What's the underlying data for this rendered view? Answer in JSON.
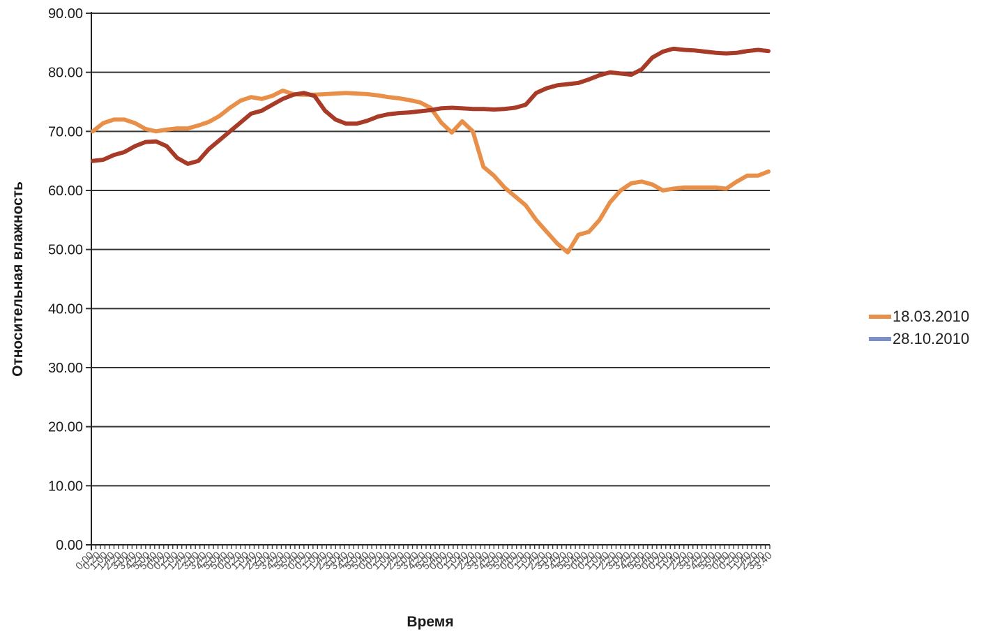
{
  "chart_data": {
    "type": "line",
    "xlabel": "Время",
    "ylabel": "Относительная влажность",
    "ylim": [
      0,
      90
    ],
    "y_ticks": [
      "0.00",
      "10.00",
      "20.00",
      "30.00",
      "40.00",
      "50.00",
      "60.00",
      "70.00",
      "80.00",
      "90.00"
    ],
    "grid": "horizontal",
    "legend_position": "right",
    "x_tick_labels_legible": false,
    "series": [
      {
        "name": "18.03.2010",
        "color": "#e8904a",
        "legend_color": "#e8904a",
        "values": [
          70.0,
          71.4,
          72.0,
          72.0,
          71.4,
          70.4,
          70.0,
          70.3,
          70.5,
          70.5,
          71.0,
          71.6,
          72.6,
          74.0,
          75.2,
          75.8,
          75.5,
          76.0,
          76.9,
          76.3,
          76.2,
          76.2,
          76.3,
          76.4,
          76.5,
          76.4,
          76.3,
          76.1,
          75.8,
          75.6,
          75.3,
          74.9,
          74.0,
          71.5,
          69.8,
          71.7,
          70.0,
          64.0,
          62.5,
          60.5,
          59.0,
          57.5,
          55.0,
          53.0,
          51.0,
          49.5,
          52.5,
          53.0,
          55.0,
          58.0,
          60.0,
          61.2,
          61.5,
          61.0,
          60.0,
          60.3,
          60.5,
          60.5,
          60.5,
          60.5,
          60.3,
          61.5,
          62.5,
          62.5,
          63.2
        ]
      },
      {
        "name": "28.10.2010",
        "color": "#a83a28",
        "legend_color": "#7b8fc8",
        "values": [
          65.0,
          65.2,
          66.0,
          66.5,
          67.5,
          68.2,
          68.3,
          67.5,
          65.5,
          64.5,
          65.0,
          67.0,
          68.5,
          70.0,
          71.5,
          73.0,
          73.5,
          74.5,
          75.5,
          76.2,
          76.5,
          76.0,
          73.5,
          72.0,
          71.3,
          71.3,
          71.8,
          72.5,
          72.9,
          73.1,
          73.2,
          73.4,
          73.6,
          73.9,
          74.0,
          73.9,
          73.8,
          73.8,
          73.7,
          73.8,
          74.0,
          74.5,
          76.5,
          77.3,
          77.8,
          78.0,
          78.2,
          78.8,
          79.5,
          80.0,
          79.8,
          79.6,
          80.5,
          82.5,
          83.5,
          84.0,
          83.8,
          83.7,
          83.5,
          83.3,
          83.2,
          83.3,
          83.6,
          83.8,
          83.6
        ]
      }
    ]
  }
}
